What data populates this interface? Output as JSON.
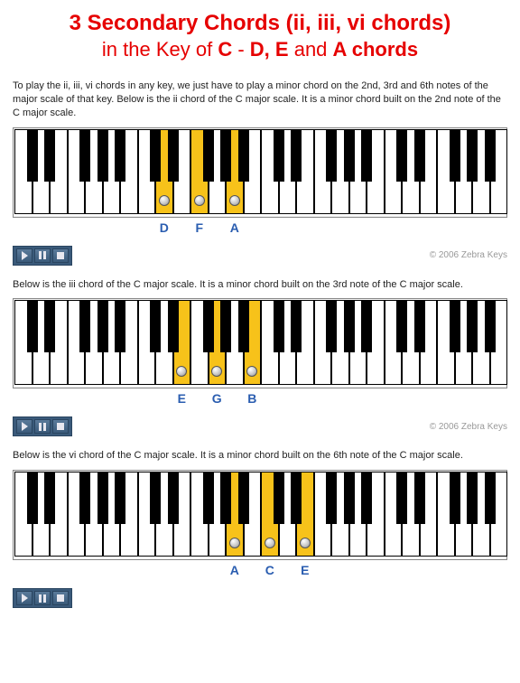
{
  "title": {
    "line1": "3 Secondary Chords (ii, iii, vi chords)",
    "line2_prefix": "in the Key of ",
    "line2_bold1": "C",
    "line2_mid": " - ",
    "line2_bold2": "D, E",
    "line2_mid2": " and ",
    "line2_bold3": "A chords",
    "color": "#e60000"
  },
  "keyboard_layout": {
    "white_keys_count": 28,
    "white_key_width": 19.5,
    "black_key_width": 12,
    "black_positions_in_7": [
      0,
      1,
      3,
      4,
      5
    ],
    "highlight_color": "#f7c21a",
    "border_color": "#000000",
    "note_label_color": "#2a5db0"
  },
  "sections": [
    {
      "desc": "To play the ii, iii, vi chords in any key, we just have to play a minor chord on the 2nd, 3rd and 6th notes of the major scale of that key. Below is the ii chord of the C major scale. It is a minor chord built on the 2nd note of the C major scale.",
      "highlighted_whites": [
        8,
        10,
        12
      ],
      "notes": [
        {
          "label": "D",
          "white_index": 8
        },
        {
          "label": "F",
          "white_index": 10
        },
        {
          "label": "A",
          "white_index": 12
        }
      ],
      "copyright": "© 2006 Zebra Keys"
    },
    {
      "desc": "Below is the iii chord of the C major scale. It is a minor chord built on the 3rd note of the C major scale.",
      "highlighted_whites": [
        9,
        11,
        13
      ],
      "notes": [
        {
          "label": "E",
          "white_index": 9
        },
        {
          "label": "G",
          "white_index": 11
        },
        {
          "label": "B",
          "white_index": 13
        }
      ],
      "copyright": "© 2006 Zebra Keys"
    },
    {
      "desc": "Below is the vi chord of the C major scale. It is a minor chord built on the 6th note of the C major scale.",
      "highlighted_whites": [
        12,
        14,
        16
      ],
      "notes": [
        {
          "label": "A",
          "white_index": 12
        },
        {
          "label": "C",
          "white_index": 14
        },
        {
          "label": "E",
          "white_index": 16
        }
      ],
      "copyright": ""
    }
  ],
  "controls": {
    "play_title": "Play",
    "pause_title": "Pause",
    "stop_title": "Stop"
  }
}
